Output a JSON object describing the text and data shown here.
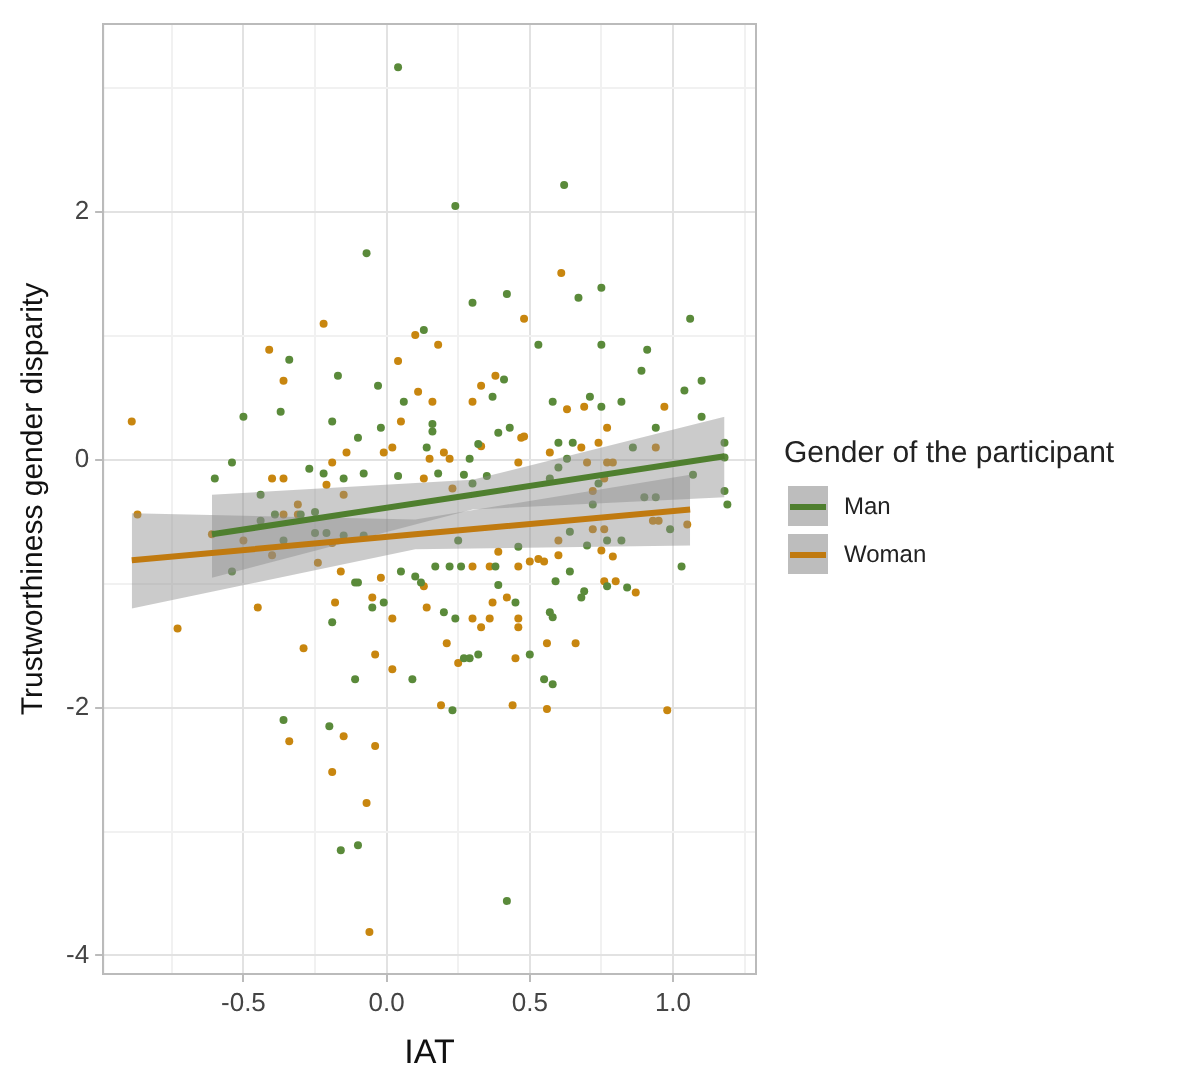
{
  "chart_data": {
    "type": "scatter",
    "xlabel": "IAT",
    "ylabel": "Trustworthiness gender disparity",
    "legend_title": "Gender of the participant",
    "legend": "right",
    "grid": true,
    "marker": "circle",
    "xlim": [
      -0.99,
      1.29
    ],
    "ylim": [
      -4.15,
      3.52
    ],
    "xticks": [
      {
        "value": -0.75,
        "label": null
      },
      -0.5,
      {
        "value": -0.25,
        "label": null
      },
      {
        "value": 0,
        "label": "0.0"
      },
      {
        "value": 0.25,
        "label": null
      },
      0.5,
      {
        "value": 0.75,
        "label": null
      },
      {
        "value": 1,
        "label": "1.0"
      },
      {
        "value": 1.25,
        "label": null
      }
    ],
    "yticks": [
      -4,
      {
        "value": -3,
        "label": null
      },
      -2,
      {
        "value": -1,
        "label": null
      },
      0,
      {
        "value": 1,
        "label": null
      },
      2,
      {
        "value": 3,
        "label": null
      }
    ],
    "series": [
      {
        "color": "#5a8a3a",
        "x": [
          -0.34,
          -0.5,
          -0.37,
          -0.54,
          -0.6,
          -0.44,
          0.04,
          0.24,
          -0.07,
          0.3,
          0.42,
          0.13,
          -0.17,
          -0.03,
          0.06,
          0.41,
          0.37,
          -0.19,
          -0.02,
          0.16,
          0.16,
          -0.1,
          0.43,
          0.32,
          0.39,
          0.14,
          0.29,
          -0.27,
          -0.22,
          -0.15,
          -0.08,
          0.04,
          0.18,
          0.27,
          0.35,
          0.3,
          -0.25,
          0.62,
          0.67,
          0.75,
          1.06,
          0.53,
          0.75,
          0.91,
          0.89,
          1.04,
          1.1,
          0.58,
          0.71,
          0.75,
          0.82,
          1.1,
          0.94,
          0.6,
          0.65,
          0.86,
          1.18,
          0.63,
          0.6,
          1.18,
          1.07,
          0.74,
          0.57,
          0.9,
          0.94,
          0.72,
          1.18,
          1.19,
          -0.44,
          -0.39,
          -0.3,
          -0.36,
          -0.54,
          -0.36,
          -0.2,
          -0.16,
          -0.1,
          0.42,
          -0.11,
          0.09,
          0.23,
          0.27,
          0.29,
          0.32,
          0.5,
          -0.19,
          -0.01,
          -0.05,
          -0.11,
          -0.1,
          0.05,
          0.1,
          0.12,
          0.2,
          0.24,
          0.39,
          0.45,
          0.17,
          0.22,
          0.26,
          0.38,
          -0.25,
          -0.21,
          -0.15,
          -0.08,
          0.25,
          0.55,
          0.58,
          0.57,
          0.58,
          0.68,
          0.69,
          0.77,
          0.84,
          0.59,
          0.64,
          1.03,
          0.7,
          0.77,
          0.82,
          0.64,
          0.46,
          0.99
        ],
        "values": [
          0.81,
          0.35,
          0.39,
          -0.02,
          -0.15,
          -0.28,
          3.17,
          2.05,
          1.67,
          1.27,
          1.34,
          1.05,
          0.68,
          0.6,
          0.47,
          0.65,
          0.51,
          0.31,
          0.26,
          0.29,
          0.23,
          0.18,
          0.26,
          0.13,
          0.22,
          0.1,
          0.01,
          -0.07,
          -0.11,
          -0.15,
          -0.11,
          -0.13,
          -0.11,
          -0.12,
          -0.13,
          -0.19,
          -0.42,
          2.22,
          1.31,
          1.39,
          1.14,
          0.93,
          0.93,
          0.89,
          0.72,
          0.56,
          0.64,
          0.47,
          0.51,
          0.43,
          0.47,
          0.35,
          0.26,
          0.14,
          0.14,
          0.1,
          0.14,
          0.01,
          -0.06,
          0.02,
          -0.12,
          -0.19,
          -0.15,
          -0.3,
          -0.3,
          -0.36,
          -0.25,
          -0.36,
          -0.49,
          -0.44,
          -0.44,
          -0.65,
          -0.9,
          -2.1,
          -2.15,
          -3.15,
          -3.11,
          -3.56,
          -1.77,
          -1.77,
          -2.02,
          -1.6,
          -1.6,
          -1.57,
          -1.57,
          -1.31,
          -1.15,
          -1.19,
          -0.99,
          -0.99,
          -0.9,
          -0.94,
          -0.99,
          -1.23,
          -1.28,
          -1.01,
          -1.15,
          -0.86,
          -0.86,
          -0.86,
          -0.86,
          -0.59,
          -0.59,
          -0.61,
          -0.61,
          -0.65,
          -1.77,
          -1.81,
          -1.23,
          -1.27,
          -1.11,
          -1.06,
          -1.02,
          -1.03,
          -0.98,
          -0.9,
          -0.86,
          -0.69,
          -0.65,
          -0.65,
          -0.58,
          -0.7,
          -0.56
        ]
      },
      {
        "color": "#c8860f",
        "x": [
          -0.89,
          -0.41,
          -0.36,
          -0.4,
          -0.36,
          -0.87,
          0.48,
          -0.22,
          0.1,
          0.18,
          0.04,
          0.11,
          0.16,
          0.38,
          0.33,
          0.3,
          0.05,
          0.47,
          0.33,
          0.02,
          -0.01,
          -0.14,
          0.15,
          0.2,
          0.22,
          -0.19,
          0.13,
          0.46,
          -0.21,
          -0.15,
          0.23,
          -0.31,
          0.61,
          0.63,
          0.69,
          0.97,
          0.77,
          0.48,
          0.68,
          0.74,
          0.94,
          0.57,
          0.7,
          0.77,
          0.79,
          0.76,
          0.72,
          -0.36,
          -0.31,
          -0.61,
          -0.5,
          -0.4,
          -0.45,
          -0.73,
          -0.29,
          -0.34,
          -0.15,
          -0.19,
          -0.04,
          -0.07,
          -0.06,
          0.02,
          -0.04,
          0.19,
          0.44,
          0.21,
          0.25,
          0.45,
          -0.18,
          0.02,
          -0.05,
          -0.02,
          0.13,
          0.14,
          0.3,
          0.33,
          0.36,
          0.37,
          0.42,
          0.46,
          0.3,
          0.36,
          0.46,
          -0.24,
          -0.16,
          -0.19,
          0.39,
          0.5,
          0.56,
          0.98,
          0.56,
          0.66,
          0.46,
          0.76,
          0.8,
          0.87,
          0.75,
          0.79,
          0.72,
          0.76,
          0.6,
          0.6,
          0.53,
          0.55,
          0.93,
          0.95,
          1.05
        ],
        "values": [
          0.31,
          0.89,
          0.64,
          -0.15,
          -0.15,
          -0.44,
          1.14,
          1.1,
          1.01,
          0.93,
          0.8,
          0.55,
          0.47,
          0.68,
          0.6,
          0.47,
          0.31,
          0.18,
          0.11,
          0.1,
          0.06,
          0.06,
          0.01,
          0.06,
          0.01,
          -0.02,
          -0.15,
          -0.02,
          -0.2,
          -0.28,
          -0.23,
          -0.36,
          1.51,
          0.41,
          0.43,
          0.43,
          0.26,
          0.19,
          0.1,
          0.14,
          0.1,
          0.06,
          -0.02,
          -0.02,
          -0.02,
          -0.15,
          -0.25,
          -0.44,
          -0.44,
          -0.6,
          -0.65,
          -0.77,
          -1.19,
          -1.36,
          -1.52,
          -2.27,
          -2.23,
          -2.52,
          -2.31,
          -2.77,
          -3.81,
          -1.69,
          -1.57,
          -1.98,
          -1.98,
          -1.48,
          -1.64,
          -1.6,
          -1.15,
          -1.28,
          -1.11,
          -0.95,
          -1.02,
          -1.19,
          -1.28,
          -1.35,
          -1.28,
          -1.15,
          -1.11,
          -1.28,
          -0.86,
          -0.86,
          -0.86,
          -0.83,
          -0.9,
          -0.67,
          -0.74,
          -0.82,
          -2.01,
          -2.02,
          -1.48,
          -1.48,
          -1.35,
          -0.98,
          -0.98,
          -1.07,
          -0.73,
          -0.78,
          -0.56,
          -0.56,
          -0.65,
          -0.77,
          -0.8,
          -0.82,
          -0.49,
          -0.49,
          -0.52
        ]
      },
      {
        "type": "line",
        "marker": "none",
        "name": "Man",
        "color": "#4f7f2f",
        "x": [
          -0.61,
          0.3,
          1.18
        ],
        "values": [
          -0.6,
          -0.28,
          0.03
        ],
        "lower": [
          -0.95,
          -0.4,
          -0.3
        ],
        "upper": [
          -0.28,
          -0.16,
          0.35
        ]
      },
      {
        "type": "line",
        "marker": "none",
        "name": "Woman",
        "color": "#c07a10",
        "x": [
          -0.89,
          0.1,
          1.06
        ],
        "values": [
          -0.81,
          -0.6,
          -0.4
        ],
        "lower": [
          -1.2,
          -0.72,
          -0.69
        ],
        "upper": [
          -0.43,
          -0.48,
          -0.12
        ]
      }
    ]
  }
}
